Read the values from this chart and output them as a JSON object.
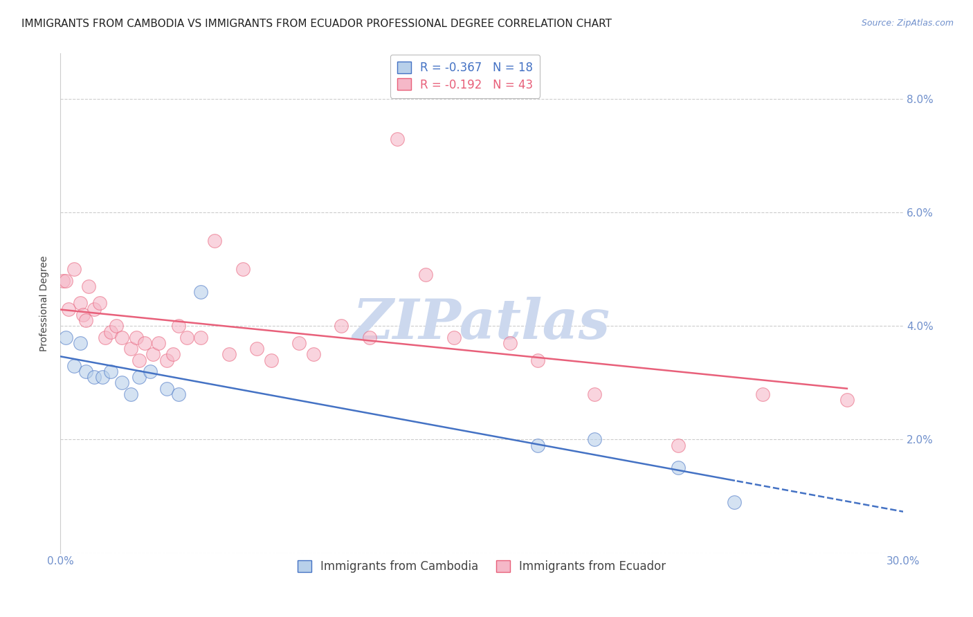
{
  "title": "IMMIGRANTS FROM CAMBODIA VS IMMIGRANTS FROM ECUADOR PROFESSIONAL DEGREE CORRELATION CHART",
  "source": "Source: ZipAtlas.com",
  "ylabel": "Professional Degree",
  "xlim": [
    0.0,
    0.3
  ],
  "ylim": [
    0.0,
    0.088
  ],
  "yticks": [
    0.0,
    0.02,
    0.04,
    0.06,
    0.08
  ],
  "ytick_labels_right": [
    "",
    "2.0%",
    "4.0%",
    "6.0%",
    "8.0%"
  ],
  "xticks": [
    0.0,
    0.05,
    0.1,
    0.15,
    0.2,
    0.25,
    0.3
  ],
  "xtick_labels": [
    "0.0%",
    "",
    "",
    "",
    "",
    "",
    "30.0%"
  ],
  "legend_cambodia": "R = -0.367   N = 18",
  "legend_ecuador": "R = -0.192   N = 43",
  "color_cambodia": "#b8d0ea",
  "color_ecuador": "#f5b8c8",
  "line_color_cambodia": "#4472c4",
  "line_color_ecuador": "#e8607a",
  "axis_color": "#7090cc",
  "title_fontsize": 11,
  "label_fontsize": 10,
  "tick_fontsize": 11,
  "cambodia_x": [
    0.002,
    0.005,
    0.007,
    0.009,
    0.012,
    0.015,
    0.018,
    0.022,
    0.025,
    0.028,
    0.032,
    0.038,
    0.042,
    0.05,
    0.17,
    0.19,
    0.22,
    0.24
  ],
  "cambodia_y": [
    0.038,
    0.033,
    0.037,
    0.032,
    0.031,
    0.031,
    0.032,
    0.03,
    0.028,
    0.031,
    0.032,
    0.029,
    0.028,
    0.046,
    0.019,
    0.02,
    0.015,
    0.009
  ],
  "ecuador_x": [
    0.001,
    0.002,
    0.003,
    0.005,
    0.007,
    0.008,
    0.009,
    0.01,
    0.012,
    0.014,
    0.016,
    0.018,
    0.02,
    0.022,
    0.025,
    0.027,
    0.028,
    0.03,
    0.033,
    0.035,
    0.038,
    0.04,
    0.042,
    0.045,
    0.05,
    0.055,
    0.06,
    0.065,
    0.07,
    0.075,
    0.085,
    0.09,
    0.1,
    0.11,
    0.12,
    0.13,
    0.14,
    0.16,
    0.17,
    0.19,
    0.22,
    0.25,
    0.28
  ],
  "ecuador_y": [
    0.048,
    0.048,
    0.043,
    0.05,
    0.044,
    0.042,
    0.041,
    0.047,
    0.043,
    0.044,
    0.038,
    0.039,
    0.04,
    0.038,
    0.036,
    0.038,
    0.034,
    0.037,
    0.035,
    0.037,
    0.034,
    0.035,
    0.04,
    0.038,
    0.038,
    0.055,
    0.035,
    0.05,
    0.036,
    0.034,
    0.037,
    0.035,
    0.04,
    0.038,
    0.073,
    0.049,
    0.038,
    0.037,
    0.034,
    0.028,
    0.019,
    0.028,
    0.027
  ],
  "background_color": "#ffffff",
  "watermark": "ZIPatlas",
  "watermark_color": "#ccd8ee"
}
